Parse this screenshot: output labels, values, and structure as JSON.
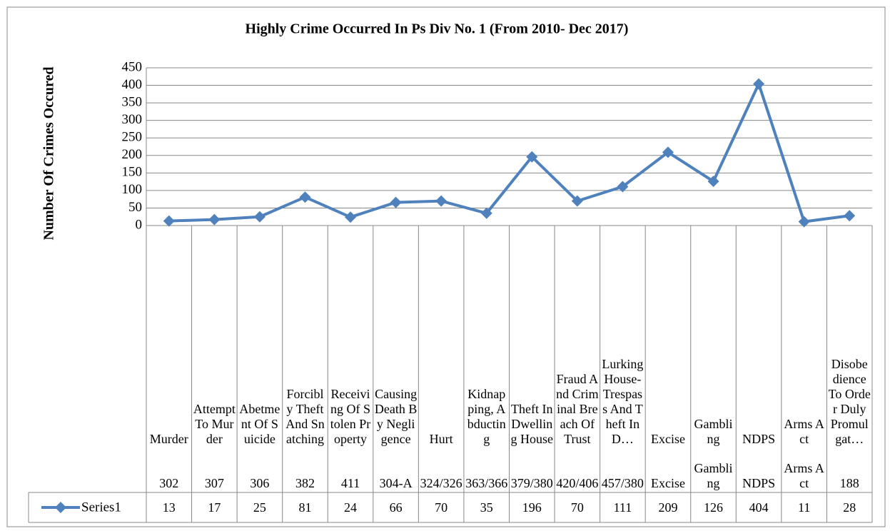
{
  "chart_data": {
    "type": "line",
    "title": "Highly Crime Occurred In Ps Div No. 1 (From 2010- Dec 2017)",
    "y_label": "Number Of Crimes Occured",
    "categories": [
      "Murder",
      "Attempt To Murder",
      "Abetment Of Suicide",
      "Forcibly Theft And Snatching",
      "Receiving Of Stolen Property",
      "Causing Death By Negligence",
      "Hurt",
      "Kidnapping, Abducting",
      "Theft In Dwelling House",
      "Fraud And Criminal Breach Of Trust",
      "Lurking House-Trespass And Theft In D…",
      "Excise",
      "Gambling",
      "NDPS",
      "Arms Act",
      "Disobedience To Order Duly Promulgat…"
    ],
    "sections": [
      "302",
      "307",
      "306",
      "382",
      "411",
      "304-A",
      "324/326",
      "363/366",
      "379/380",
      "420/406",
      "457/380",
      "Excise",
      "Gambling",
      "NDPS",
      "Arms Act",
      "188"
    ],
    "series": [
      {
        "name": "Series1",
        "color": "#4f81bd",
        "values": [
          13,
          17,
          25,
          81,
          24,
          66,
          70,
          35,
          196,
          70,
          111,
          209,
          126,
          404,
          11,
          28
        ]
      }
    ],
    "ylim": [
      0,
      450
    ],
    "yticks": [
      0,
      50,
      100,
      150,
      200,
      250,
      300,
      350,
      400,
      450
    ],
    "grid": true,
    "legend": "bottom-left"
  }
}
